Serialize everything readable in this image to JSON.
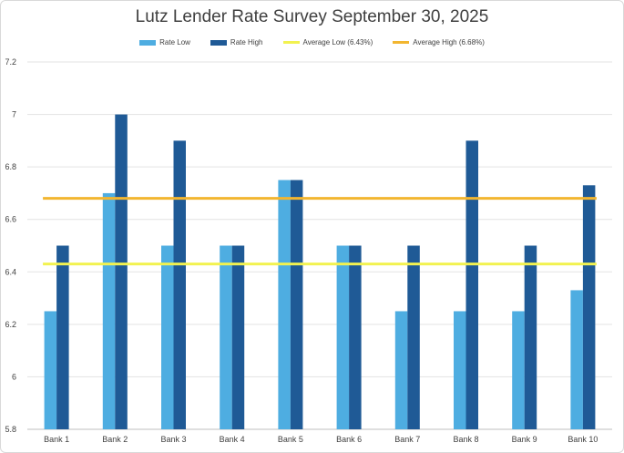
{
  "chart_data": {
    "type": "bar",
    "title": "Lutz Lender Rate Survey September 30, 2025",
    "xlabel": "",
    "ylabel": "",
    "ylim": [
      5.8,
      7.2
    ],
    "yticks": [
      5.8,
      6,
      6.2,
      6.4,
      6.6,
      6.8,
      7,
      7.2
    ],
    "grid": true,
    "legend_position": "top",
    "categories": [
      "Bank 1",
      "Bank 2",
      "Bank 3",
      "Bank 4",
      "Bank 5",
      "Bank 6",
      "Bank 7",
      "Bank 8",
      "Bank 9",
      "Bank 10"
    ],
    "series": [
      {
        "name": "Rate  Low",
        "kind": "bar",
        "color": "#4EADE1",
        "values": [
          6.25,
          6.7,
          6.5,
          6.5,
          6.75,
          6.5,
          6.25,
          6.25,
          6.25,
          6.33
        ]
      },
      {
        "name": "Rate High",
        "kind": "bar",
        "color": "#1F5A96",
        "values": [
          6.5,
          7.0,
          6.9,
          6.5,
          6.75,
          6.5,
          6.5,
          6.9,
          6.5,
          6.73
        ]
      }
    ],
    "reference_lines": [
      {
        "name": "Average Low (6.43%)",
        "value": 6.43,
        "color": "#F2F250"
      },
      {
        "name": "Average High (6.68%)",
        "value": 6.68,
        "color": "#F2B630"
      }
    ]
  }
}
